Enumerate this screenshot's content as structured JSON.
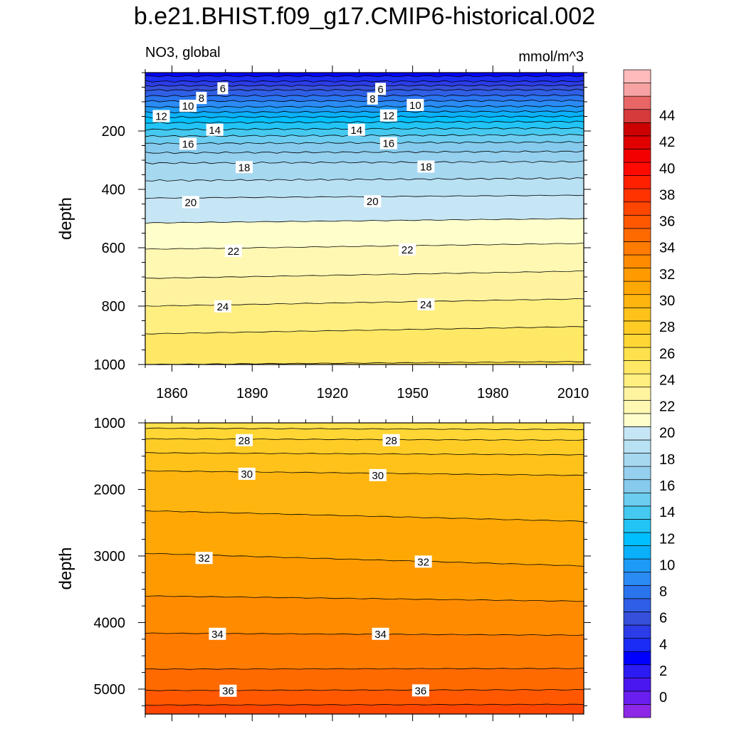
{
  "title": "b.e21.BHIST.f09_g17.CMIP6-historical.002",
  "chart_data": {
    "type": "contour",
    "variable": "NO3, global",
    "units": "mmol/m^3",
    "x_label": "",
    "x_range": [
      1850,
      2014
    ],
    "x_ticks": [
      1860,
      1890,
      1920,
      1950,
      1980,
      2010
    ],
    "colorbar": {
      "levels": [
        0,
        2,
        4,
        6,
        8,
        10,
        12,
        14,
        16,
        18,
        20,
        22,
        24,
        26,
        28,
        30,
        32,
        34,
        36,
        38,
        40,
        42,
        44
      ],
      "labels": [
        "0",
        "2",
        "4",
        "6",
        "8",
        "10",
        "12",
        "14",
        "16",
        "18",
        "20",
        "22",
        "24",
        "26",
        "28",
        "30",
        "32",
        "34",
        "36",
        "38",
        "40",
        "42",
        "44"
      ],
      "colors": [
        "#8c28e6",
        "#6a1ff0",
        "#4b17f0",
        "#2c1bf2",
        "#0000ff",
        "#1a2cf5",
        "#2c3ce8",
        "#3650dc",
        "#2f5fe6",
        "#2a74ee",
        "#2b8bf5",
        "#1e9af7",
        "#0ab0f9",
        "#00bfff",
        "#22c4f5",
        "#45c9f0",
        "#6ccdf0",
        "#86cbed",
        "#95d0ee",
        "#a6d8f0",
        "#b8e1f3",
        "#c6e6f5",
        "#ffffcc",
        "#fff8b3",
        "#fff3a0",
        "#ffee80",
        "#ffe866",
        "#ffe14d",
        "#ffd633",
        "#ffcc26",
        "#ffc21a",
        "#ffb50f",
        "#ffa805",
        "#ff9b00",
        "#ff8c00",
        "#ff7c00",
        "#ff6a00",
        "#ff5800",
        "#ff4600",
        "#ff3300",
        "#ff2000",
        "#ff0a00",
        "#f20000",
        "#e00000",
        "#cc0000",
        "#d63a3a",
        "#e86666",
        "#f7a3a3",
        "#ffbbbb"
      ]
    },
    "panels": [
      {
        "name": "upper",
        "ylabel": "depth",
        "y_range": [
          0,
          1000
        ],
        "y_ticks": [
          200,
          400,
          600,
          800,
          1000
        ],
        "contour_lines": [
          {
            "v": 4,
            "d0": 12,
            "d1": 12
          },
          {
            "v": 5,
            "d0": 30,
            "d1": 30
          },
          {
            "v": 6,
            "d0": 45,
            "d1": 44
          },
          {
            "v": 7,
            "d0": 60,
            "d1": 59
          },
          {
            "v": 8,
            "d0": 80,
            "d1": 78
          },
          {
            "v": 9,
            "d0": 98,
            "d1": 96
          },
          {
            "v": 10,
            "d0": 118,
            "d1": 115
          },
          {
            "v": 11,
            "d0": 136,
            "d1": 133
          },
          {
            "v": 12,
            "d0": 153,
            "d1": 150
          },
          {
            "v": 13,
            "d0": 172,
            "d1": 168
          },
          {
            "v": 14,
            "d0": 195,
            "d1": 190
          },
          {
            "v": 15,
            "d0": 218,
            "d1": 213
          },
          {
            "v": 16,
            "d0": 243,
            "d1": 238
          },
          {
            "v": 17,
            "d0": 275,
            "d1": 270
          },
          {
            "v": 18,
            "d0": 310,
            "d1": 305
          },
          {
            "v": 19,
            "d0": 370,
            "d1": 362
          },
          {
            "v": 20,
            "d0": 430,
            "d1": 420
          },
          {
            "v": 21,
            "d0": 515,
            "d1": 500
          },
          {
            "v": 22,
            "d0": 605,
            "d1": 585
          },
          {
            "v": 23,
            "d0": 705,
            "d1": 680
          },
          {
            "v": 24,
            "d0": 800,
            "d1": 775
          },
          {
            "v": 25,
            "d0": 895,
            "d1": 870
          },
          {
            "v": 26,
            "d0": 1000,
            "d1": 990
          }
        ],
        "labels": [
          {
            "text": "6",
            "x": 1879,
            "d": 55
          },
          {
            "text": "6",
            "x": 1938,
            "d": 57
          },
          {
            "text": "8",
            "x": 1871,
            "d": 88
          },
          {
            "text": "8",
            "x": 1935,
            "d": 90
          },
          {
            "text": "10",
            "x": 1866,
            "d": 115
          },
          {
            "text": "10",
            "x": 1951,
            "d": 112
          },
          {
            "text": "12",
            "x": 1856,
            "d": 150
          },
          {
            "text": "12",
            "x": 1941,
            "d": 148
          },
          {
            "text": "14",
            "x": 1876,
            "d": 197
          },
          {
            "text": "14",
            "x": 1929,
            "d": 197
          },
          {
            "text": "16",
            "x": 1866,
            "d": 245
          },
          {
            "text": "16",
            "x": 1941,
            "d": 243
          },
          {
            "text": "18",
            "x": 1887,
            "d": 325
          },
          {
            "text": "18",
            "x": 1955,
            "d": 323
          },
          {
            "text": "20",
            "x": 1867,
            "d": 445
          },
          {
            "text": "20",
            "x": 1935,
            "d": 442
          },
          {
            "text": "22",
            "x": 1883,
            "d": 612
          },
          {
            "text": "22",
            "x": 1948,
            "d": 607
          },
          {
            "text": "24",
            "x": 1879,
            "d": 802
          },
          {
            "text": "24",
            "x": 1955,
            "d": 795
          }
        ]
      },
      {
        "name": "lower",
        "ylabel": "depth",
        "y_range": [
          1000,
          5375
        ],
        "y_ticks": [
          1000,
          2000,
          3000,
          4000,
          5000
        ],
        "contour_lines": [
          {
            "v": 27,
            "d0": 1080,
            "d1": 1100
          },
          {
            "v": 28,
            "d0": 1240,
            "d1": 1260
          },
          {
            "v": 29,
            "d0": 1450,
            "d1": 1480
          },
          {
            "v": 30,
            "d0": 1720,
            "d1": 1790
          },
          {
            "v": 31,
            "d0": 2320,
            "d1": 2480
          },
          {
            "v": 32,
            "d0": 2960,
            "d1": 3150
          },
          {
            "v": 33,
            "d0": 3600,
            "d1": 3680
          },
          {
            "v": 34,
            "d0": 4160,
            "d1": 4190
          },
          {
            "v": 35,
            "d0": 4700,
            "d1": 4690
          },
          {
            "v": 36,
            "d0": 5020,
            "d1": 5010
          },
          {
            "v": 37,
            "d0": 5240,
            "d1": 5230
          }
        ],
        "labels": [
          {
            "text": "28",
            "x": 1887,
            "d": 1265
          },
          {
            "text": "28",
            "x": 1942,
            "d": 1265
          },
          {
            "text": "30",
            "x": 1888,
            "d": 1770
          },
          {
            "text": "30",
            "x": 1937,
            "d": 1790
          },
          {
            "text": "32",
            "x": 1872,
            "d": 3035
          },
          {
            "text": "32",
            "x": 1954,
            "d": 3090
          },
          {
            "text": "34",
            "x": 1877,
            "d": 4175
          },
          {
            "text": "34",
            "x": 1938,
            "d": 4175
          },
          {
            "text": "36",
            "x": 1881,
            "d": 5030
          },
          {
            "text": "36",
            "x": 1953,
            "d": 5025
          }
        ]
      }
    ]
  }
}
